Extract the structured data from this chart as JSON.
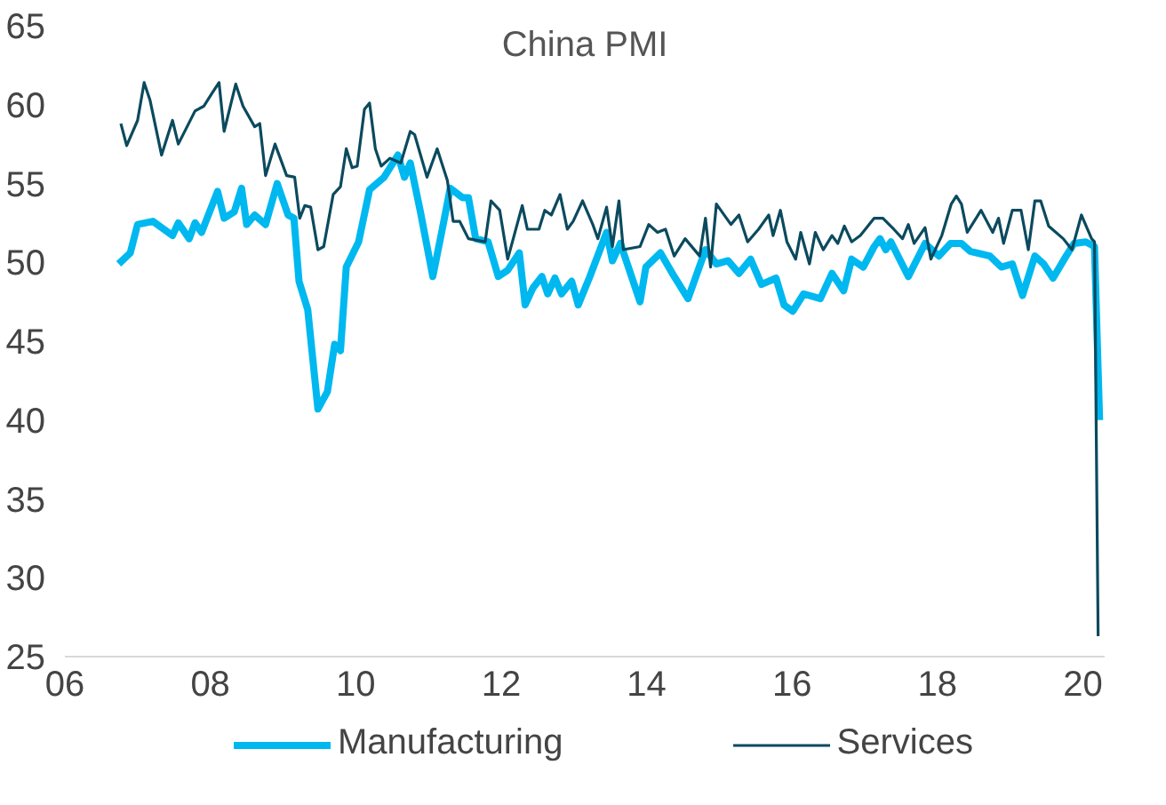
{
  "chart_data": {
    "type": "line",
    "title": "China PMI",
    "xlim": [
      2006,
      2020.3
    ],
    "ylim": [
      25,
      65
    ],
    "xticks": [
      {
        "value": 2006,
        "label": "06"
      },
      {
        "value": 2008,
        "label": "08"
      },
      {
        "value": 2010,
        "label": "10"
      },
      {
        "value": 2012,
        "label": "12"
      },
      {
        "value": 2014,
        "label": "14"
      },
      {
        "value": 2016,
        "label": "16"
      },
      {
        "value": 2018,
        "label": "18"
      },
      {
        "value": 2020,
        "label": "20"
      }
    ],
    "yticks": [
      25,
      30,
      35,
      40,
      45,
      50,
      55,
      60,
      65
    ],
    "grid": false,
    "legend": "bottom",
    "line_style": "solid",
    "series": [
      {
        "name": "Manufacturing",
        "color": "#00b8f0",
        "x": [
          2006.74,
          2006.9,
          2007.0,
          2007.21,
          2007.48,
          2007.56,
          2007.71,
          2007.79,
          2007.88,
          2008.1,
          2008.19,
          2008.33,
          2008.43,
          2008.5,
          2008.61,
          2008.76,
          2008.92,
          2009.07,
          2009.15,
          2009.22,
          2009.34,
          2009.48,
          2009.61,
          2009.71,
          2009.79,
          2009.87,
          2010.04,
          2010.19,
          2010.39,
          2010.58,
          2010.67,
          2010.75,
          2010.89,
          2011.06,
          2011.19,
          2011.3,
          2011.47,
          2011.55,
          2011.65,
          2011.82,
          2011.96,
          2012.09,
          2012.25,
          2012.33,
          2012.44,
          2012.56,
          2012.64,
          2012.74,
          2012.83,
          2012.97,
          2013.06,
          2013.22,
          2013.45,
          2013.53,
          2013.64,
          2013.91,
          2013.99,
          2014.19,
          2014.38,
          2014.57,
          2014.81,
          2014.96,
          2015.12,
          2015.27,
          2015.43,
          2015.58,
          2015.78,
          2015.89,
          2016.01,
          2016.16,
          2016.39,
          2016.55,
          2016.71,
          2016.82,
          2016.98,
          2017.13,
          2017.21,
          2017.29,
          2017.36,
          2017.6,
          2017.83,
          2018.02,
          2018.18,
          2018.33,
          2018.45,
          2018.72,
          2018.88,
          2019.03,
          2019.17,
          2019.34,
          2019.46,
          2019.59,
          2019.77,
          2019.88,
          2020.04,
          2020.16,
          2020.23
        ],
        "values": [
          49.9,
          50.6,
          52.4,
          52.6,
          51.7,
          52.5,
          51.5,
          52.5,
          51.9,
          54.5,
          52.8,
          53.2,
          54.7,
          52.4,
          53.0,
          52.4,
          55.0,
          53.0,
          52.8,
          48.8,
          47.0,
          40.7,
          41.8,
          44.8,
          44.4,
          49.7,
          51.3,
          54.6,
          55.4,
          56.8,
          55.4,
          56.3,
          53.2,
          49.1,
          52.1,
          54.7,
          54.1,
          54.1,
          51.5,
          51.3,
          49.1,
          49.5,
          50.6,
          47.3,
          48.4,
          49.1,
          48.0,
          49.0,
          48.0,
          48.8,
          47.3,
          49.1,
          51.9,
          50.1,
          51.2,
          47.5,
          49.7,
          50.6,
          49.1,
          47.7,
          50.8,
          49.9,
          50.1,
          49.3,
          50.2,
          48.6,
          49.0,
          47.3,
          46.9,
          48.0,
          47.7,
          49.3,
          48.2,
          50.2,
          49.7,
          51.0,
          51.5,
          50.8,
          51.3,
          49.1,
          51.2,
          50.4,
          51.2,
          51.2,
          50.7,
          50.4,
          49.7,
          49.9,
          47.9,
          50.4,
          49.9,
          49.0,
          50.4,
          51.2,
          51.3,
          51.0,
          40.0
        ]
      },
      {
        "name": "Services",
        "color": "#0b4a5e",
        "x": [
          2006.77,
          2006.85,
          2007.0,
          2007.09,
          2007.17,
          2007.33,
          2007.48,
          2007.56,
          2007.79,
          2007.91,
          2008.02,
          2008.12,
          2008.19,
          2008.35,
          2008.45,
          2008.61,
          2008.68,
          2008.76,
          2008.89,
          2009.05,
          2009.16,
          2009.23,
          2009.3,
          2009.38,
          2009.48,
          2009.56,
          2009.69,
          2009.79,
          2009.87,
          2009.95,
          2010.02,
          2010.12,
          2010.19,
          2010.27,
          2010.35,
          2010.47,
          2010.62,
          2010.75,
          2010.81,
          2010.98,
          2011.12,
          2011.26,
          2011.34,
          2011.43,
          2011.55,
          2011.78,
          2011.86,
          2011.98,
          2012.09,
          2012.29,
          2012.36,
          2012.52,
          2012.6,
          2012.69,
          2012.81,
          2012.91,
          2012.99,
          2013.12,
          2013.26,
          2013.33,
          2013.45,
          2013.53,
          2013.62,
          2013.68,
          2013.91,
          2014.03,
          2014.15,
          2014.26,
          2014.38,
          2014.53,
          2014.73,
          2014.81,
          2014.88,
          2014.96,
          2015.16,
          2015.27,
          2015.39,
          2015.54,
          2015.68,
          2015.74,
          2015.84,
          2015.93,
          2016.05,
          2016.12,
          2016.24,
          2016.32,
          2016.43,
          2016.55,
          2016.63,
          2016.72,
          2016.82,
          2016.94,
          2017.13,
          2017.25,
          2017.4,
          2017.52,
          2017.6,
          2017.68,
          2017.83,
          2017.91,
          2018.06,
          2018.19,
          2018.26,
          2018.33,
          2018.41,
          2018.6,
          2018.76,
          2018.84,
          2018.91,
          2019.03,
          2019.15,
          2019.25,
          2019.34,
          2019.42,
          2019.53,
          2019.73,
          2019.85,
          2019.98,
          2020.12,
          2020.16,
          2020.21
        ],
        "values": [
          58.8,
          57.4,
          59.0,
          61.4,
          60.3,
          56.8,
          59.0,
          57.5,
          59.6,
          59.9,
          60.7,
          61.4,
          58.3,
          61.3,
          59.9,
          58.6,
          58.8,
          55.5,
          57.5,
          55.5,
          55.4,
          52.8,
          53.6,
          53.5,
          50.8,
          51.0,
          54.3,
          54.8,
          57.2,
          56.0,
          56.1,
          59.7,
          60.1,
          57.2,
          56.1,
          56.6,
          56.3,
          58.3,
          58.1,
          55.4,
          57.2,
          55.2,
          52.6,
          52.6,
          51.5,
          51.3,
          53.9,
          53.3,
          50.2,
          53.6,
          52.1,
          52.1,
          53.3,
          53.0,
          54.3,
          52.1,
          52.6,
          53.9,
          52.4,
          51.5,
          53.5,
          51.0,
          53.9,
          50.8,
          51.0,
          52.4,
          51.9,
          52.1,
          50.4,
          51.5,
          50.4,
          52.8,
          49.7,
          53.7,
          52.4,
          53.0,
          51.3,
          52.1,
          53.0,
          51.7,
          53.3,
          51.3,
          50.2,
          51.9,
          49.9,
          51.9,
          50.8,
          51.7,
          51.2,
          52.3,
          51.3,
          51.7,
          52.8,
          52.8,
          52.1,
          51.5,
          52.4,
          51.2,
          52.2,
          50.2,
          51.7,
          53.7,
          54.2,
          53.7,
          51.9,
          53.3,
          51.9,
          52.8,
          51.2,
          53.3,
          53.3,
          50.8,
          53.9,
          53.9,
          52.3,
          51.5,
          50.8,
          53.0,
          51.5,
          51.3,
          26.3
        ]
      }
    ]
  }
}
